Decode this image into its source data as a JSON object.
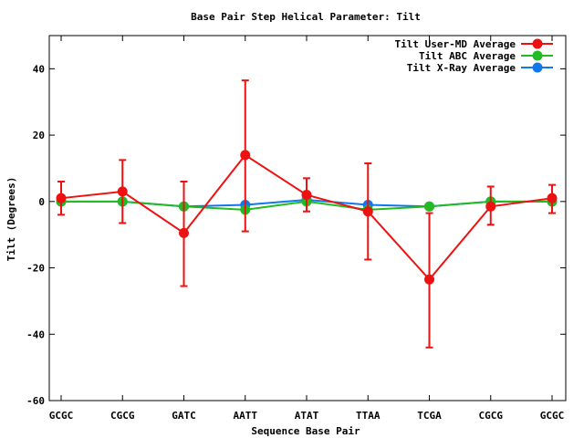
{
  "chart_data": {
    "type": "line",
    "title": "Base Pair Step Helical Parameter: Tilt",
    "xlabel": "Sequence Base Pair",
    "ylabel": "Tilt (Degrees)",
    "categories": [
      "GCGC",
      "CGCG",
      "GATC",
      "AATT",
      "ATAT",
      "TTAA",
      "TCGA",
      "CGCG",
      "GCGC"
    ],
    "ylim": [
      -60,
      50
    ],
    "yticks": [
      -60,
      -40,
      -20,
      0,
      20,
      40
    ],
    "grid": false,
    "legend_position": "top-right",
    "series": [
      {
        "name": "Tilt User-MD Average",
        "color": "#ee1111",
        "values": [
          1.0,
          3.0,
          -9.5,
          14.0,
          2.0,
          -3.0,
          -23.5,
          -1.5,
          1.0
        ],
        "err_low": [
          -4.0,
          -6.5,
          -25.5,
          -9.0,
          -3.0,
          -17.5,
          -44.0,
          -7.0,
          -3.5
        ],
        "err_high": [
          6.0,
          12.5,
          6.0,
          36.5,
          7.0,
          11.5,
          -3.5,
          4.5,
          5.0
        ]
      },
      {
        "name": "Tilt ABC Average",
        "color": "#22bb22",
        "values": [
          0.0,
          0.0,
          -1.5,
          -2.5,
          0.0,
          -2.5,
          -1.5,
          0.0,
          0.0
        ]
      },
      {
        "name": "Tilt X-Ray Average",
        "color": "#1177ee",
        "values": [
          0.0,
          0.0,
          -1.5,
          -1.0,
          0.5,
          -1.0,
          -1.5,
          0.0,
          0.0
        ]
      }
    ]
  }
}
